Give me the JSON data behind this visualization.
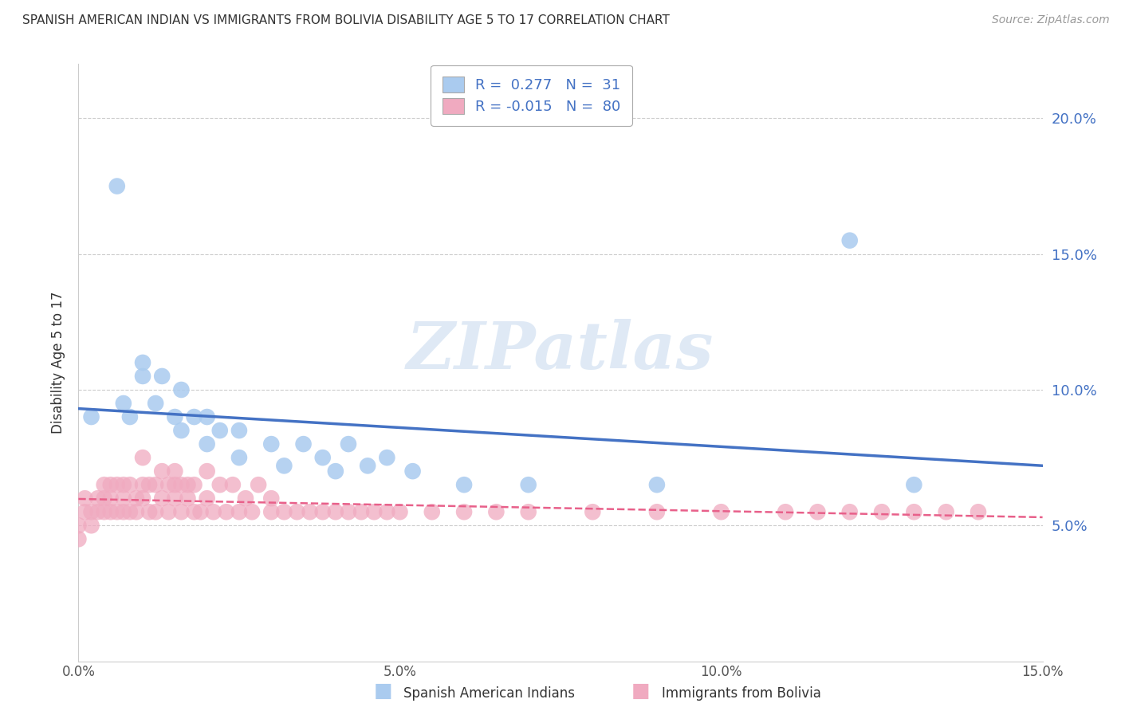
{
  "title": "SPANISH AMERICAN INDIAN VS IMMIGRANTS FROM BOLIVIA DISABILITY AGE 5 TO 17 CORRELATION CHART",
  "source": "Source: ZipAtlas.com",
  "ylabel": "Disability Age 5 to 17",
  "xlim": [
    0.0,
    0.15
  ],
  "ylim": [
    0.0,
    0.22
  ],
  "ytop": 0.2,
  "xtick_vals": [
    0.0,
    0.05,
    0.1,
    0.15
  ],
  "xtick_labels": [
    "0.0%",
    "5.0%",
    "10.0%",
    "15.0%"
  ],
  "ytick_vals": [
    0.05,
    0.1,
    0.15,
    0.2
  ],
  "ytick_labels": [
    "5.0%",
    "10.0%",
    "15.0%",
    "20.0%"
  ],
  "series1_label": "Spanish American Indians",
  "series1_color": "#aacbef",
  "series1_line_color": "#4472c4",
  "series1_R": 0.277,
  "series1_N": 31,
  "series2_label": "Immigrants from Bolivia",
  "series2_color": "#f0aac0",
  "series2_line_color": "#e8608a",
  "series2_R": -0.015,
  "series2_N": 80,
  "legend_text_color": "#4472c4",
  "background_color": "#ffffff",
  "watermark": "ZIPatlas",
  "series1_x": [
    0.002,
    0.006,
    0.007,
    0.008,
    0.01,
    0.01,
    0.012,
    0.013,
    0.015,
    0.016,
    0.016,
    0.018,
    0.02,
    0.02,
    0.022,
    0.025,
    0.025,
    0.03,
    0.032,
    0.035,
    0.038,
    0.04,
    0.042,
    0.045,
    0.048,
    0.052,
    0.06,
    0.07,
    0.09,
    0.12,
    0.13
  ],
  "series1_y": [
    0.09,
    0.175,
    0.095,
    0.09,
    0.105,
    0.11,
    0.095,
    0.105,
    0.09,
    0.085,
    0.1,
    0.09,
    0.08,
    0.09,
    0.085,
    0.075,
    0.085,
    0.08,
    0.072,
    0.08,
    0.075,
    0.07,
    0.08,
    0.072,
    0.075,
    0.07,
    0.065,
    0.065,
    0.065,
    0.155,
    0.065
  ],
  "series2_x": [
    0.0,
    0.0,
    0.001,
    0.001,
    0.002,
    0.002,
    0.003,
    0.003,
    0.004,
    0.004,
    0.004,
    0.005,
    0.005,
    0.005,
    0.006,
    0.006,
    0.007,
    0.007,
    0.007,
    0.008,
    0.008,
    0.009,
    0.009,
    0.01,
    0.01,
    0.01,
    0.011,
    0.011,
    0.012,
    0.012,
    0.013,
    0.013,
    0.014,
    0.014,
    0.015,
    0.015,
    0.015,
    0.016,
    0.016,
    0.017,
    0.017,
    0.018,
    0.018,
    0.019,
    0.02,
    0.02,
    0.021,
    0.022,
    0.023,
    0.024,
    0.025,
    0.026,
    0.027,
    0.028,
    0.03,
    0.03,
    0.032,
    0.034,
    0.036,
    0.038,
    0.04,
    0.042,
    0.044,
    0.046,
    0.048,
    0.05,
    0.055,
    0.06,
    0.065,
    0.07,
    0.08,
    0.09,
    0.1,
    0.11,
    0.115,
    0.12,
    0.125,
    0.13,
    0.135,
    0.14
  ],
  "series2_y": [
    0.05,
    0.045,
    0.055,
    0.06,
    0.05,
    0.055,
    0.055,
    0.06,
    0.06,
    0.055,
    0.065,
    0.055,
    0.06,
    0.065,
    0.055,
    0.065,
    0.055,
    0.06,
    0.065,
    0.055,
    0.065,
    0.055,
    0.06,
    0.06,
    0.065,
    0.075,
    0.055,
    0.065,
    0.055,
    0.065,
    0.06,
    0.07,
    0.055,
    0.065,
    0.06,
    0.065,
    0.07,
    0.055,
    0.065,
    0.06,
    0.065,
    0.055,
    0.065,
    0.055,
    0.06,
    0.07,
    0.055,
    0.065,
    0.055,
    0.065,
    0.055,
    0.06,
    0.055,
    0.065,
    0.055,
    0.06,
    0.055,
    0.055,
    0.055,
    0.055,
    0.055,
    0.055,
    0.055,
    0.055,
    0.055,
    0.055,
    0.055,
    0.055,
    0.055,
    0.055,
    0.055,
    0.055,
    0.055,
    0.055,
    0.055,
    0.055,
    0.055,
    0.055,
    0.055,
    0.055
  ]
}
